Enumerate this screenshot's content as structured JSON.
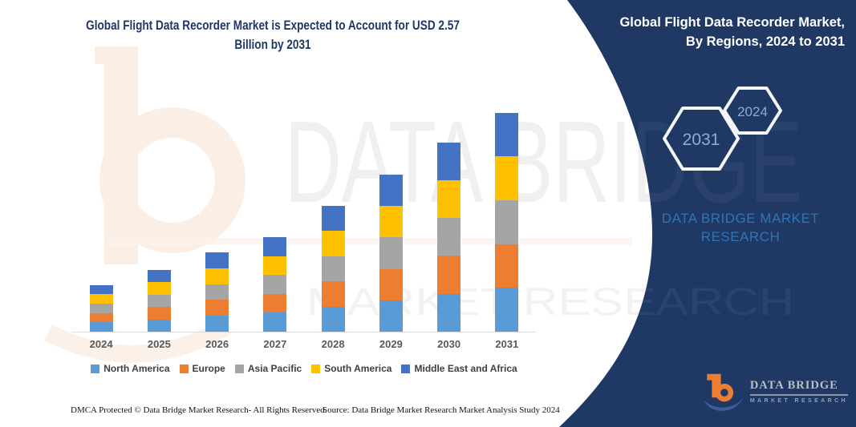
{
  "header": {
    "title_line1": "Global Flight Data Recorder Market is Expected to Account for USD 2.57",
    "title_line2": "Billion by 2031",
    "panel_title_line1": "Global Flight Data Recorder Market,",
    "panel_title_line2": "By Regions, 2024 to 2031"
  },
  "panel": {
    "hexagon_labels": [
      "2031",
      "2024"
    ],
    "brand_line1": "DATA BRIDGE MARKET",
    "brand_line2": "RESEARCH",
    "logo_title": "DATA BRIDGE",
    "logo_subtitle": "MARKET RESEARCH"
  },
  "watermark": {
    "line1": "DATA BRIDGE",
    "line2": "MARKET RESEARCH"
  },
  "footer": {
    "left": "DMCA Protected © Data Bridge Market Research-  All Rights Reserved.",
    "right": "Source: Data Bridge Market Research  Market Analysis Study 2024"
  },
  "chart_data": {
    "type": "bar",
    "stacked": true,
    "unit": "USD Billion",
    "title": "Global Flight Data Recorder Market, By Regions, 2024 to 2031",
    "categories": [
      "2024",
      "2025",
      "2026",
      "2027",
      "2028",
      "2029",
      "2030",
      "2031"
    ],
    "series": [
      {
        "name": "North America",
        "color": "#5B9BD5",
        "values": [
          0.11,
          0.146,
          0.186,
          0.222,
          0.296,
          0.368,
          0.444,
          0.514
        ]
      },
      {
        "name": "Europe",
        "color": "#ED7D31",
        "values": [
          0.11,
          0.146,
          0.186,
          0.222,
          0.296,
          0.368,
          0.444,
          0.514
        ]
      },
      {
        "name": "Asia Pacific",
        "color": "#A5A5A5",
        "values": [
          0.11,
          0.146,
          0.186,
          0.222,
          0.296,
          0.368,
          0.444,
          0.514
        ]
      },
      {
        "name": "South America",
        "color": "#FFC000",
        "values": [
          0.11,
          0.146,
          0.186,
          0.222,
          0.296,
          0.368,
          0.444,
          0.514
        ]
      },
      {
        "name": "Middle East and Africa",
        "color": "#4472C4",
        "values": [
          0.11,
          0.146,
          0.186,
          0.222,
          0.296,
          0.368,
          0.444,
          0.514
        ]
      }
    ],
    "totals": [
      0.55,
      0.73,
      0.93,
      1.11,
      1.48,
      1.84,
      2.22,
      2.57
    ],
    "highlight_value": "USD 2.57 Billion by 2031",
    "ylim": [
      0,
      2.8
    ],
    "gridlines": false,
    "y_axis_visible": false,
    "legend_position": "bottom"
  },
  "colors": {
    "background": "#FFFFFF",
    "panel_navy": "#1F3864",
    "title_text": "#1F3864",
    "panel_title_text": "#FFFFFF",
    "brand_blue": "#2E75B6",
    "hexagon_stroke": "#F5F7FA",
    "hexagon_label": "#8FAADC",
    "axis_label": "#595959",
    "legend_text": "#3F3F3F",
    "axis_line": "#DBDBDB",
    "logo_orange": "#ED7D31",
    "logo_swoosh_blue": "#3D5E9C",
    "logo_text_silver": "#B9BEC7",
    "watermark_gray": "#F0EEEE",
    "watermark_peach": "#F8E0CE"
  }
}
